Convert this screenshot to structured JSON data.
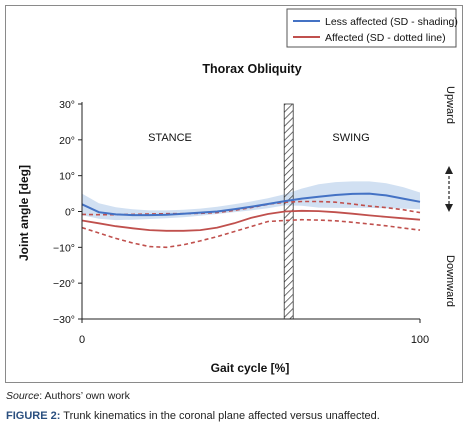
{
  "chart_data": {
    "type": "line",
    "title": "Thorax Obliquity",
    "xlabel": "Gait cycle [%]",
    "ylabel": "Joint angle [deg]",
    "xlim": [
      0,
      100
    ],
    "ylim": [
      -30,
      30
    ],
    "xticks": [
      "0",
      "100"
    ],
    "yticks": [
      "30°",
      "20°",
      "10°",
      "0°",
      "−10°",
      "−20°",
      "−30°"
    ],
    "ytick_values": [
      30,
      20,
      10,
      0,
      -10,
      -20,
      -30
    ],
    "grid": false,
    "legend_position": "top-right",
    "phase_labels": {
      "stance": "STANCE",
      "swing": "SWING"
    },
    "toe_off_x": 61,
    "direction_labels": {
      "up": "Upward",
      "down": "Downward"
    },
    "legend": [
      {
        "label": "Less affected (SD - shading)",
        "color": "#4472c4"
      },
      {
        "label": "Affected (SD - dotted line)",
        "color": "#c0504d"
      }
    ],
    "series": [
      {
        "name": "Less affected (SD - shading)",
        "color": "#4472c4",
        "x": [
          0,
          5,
          10,
          15,
          20,
          25,
          30,
          35,
          40,
          45,
          50,
          55,
          60,
          65,
          70,
          75,
          80,
          85,
          90,
          95,
          100
        ],
        "values": [
          2,
          -0.2,
          -0.8,
          -1,
          -1,
          -0.9,
          -0.6,
          -0.3,
          0,
          0.6,
          1.3,
          2.1,
          2.9,
          3.6,
          4.1,
          4.6,
          4.9,
          5,
          4.5,
          3.6,
          2.7
        ],
        "upper": [
          5,
          2.3,
          1.2,
          0.6,
          0.3,
          0.3,
          0.5,
          0.8,
          1.3,
          2,
          2.8,
          3.7,
          4.8,
          6.4,
          7.6,
          8.2,
          8.4,
          8.4,
          7.9,
          6.8,
          5.3
        ],
        "lower": [
          -1,
          -2,
          -2.4,
          -2.3,
          -2.1,
          -1.9,
          -1.6,
          -1.2,
          -0.7,
          -0.2,
          0.3,
          0.9,
          1.7,
          1.6,
          1.1,
          1,
          1,
          1,
          0.9,
          0.8,
          0.6
        ]
      },
      {
        "name": "Affected (SD - dotted line)",
        "color": "#c0504d",
        "x": [
          0,
          5,
          10,
          15,
          20,
          25,
          30,
          35,
          40,
          45,
          50,
          55,
          60,
          65,
          70,
          75,
          80,
          85,
          90,
          95,
          100
        ],
        "values": [
          -2.5,
          -3.3,
          -4.1,
          -4.7,
          -5.2,
          -5.4,
          -5.4,
          -5.2,
          -4.5,
          -3.3,
          -1.8,
          -0.7,
          0,
          0.2,
          0.1,
          -0.2,
          -0.6,
          -1.1,
          -1.5,
          -1.9,
          -2.3
        ],
        "upper": [
          -0.8,
          -0.9,
          -0.9,
          -0.8,
          -0.7,
          -0.6,
          -0.6,
          -0.5,
          -0.3,
          0.3,
          1.1,
          2,
          2.6,
          2.8,
          2.8,
          2.6,
          2.1,
          1.5,
          1.1,
          0.5,
          -0.3
        ],
        "lower": [
          -4.5,
          -6,
          -7.5,
          -8.8,
          -9.8,
          -10,
          -9.3,
          -8.2,
          -7,
          -5.6,
          -4.2,
          -2.8,
          -2.5,
          -2.3,
          -2.4,
          -2.6,
          -3,
          -3.5,
          -4,
          -4.6,
          -5.2
        ]
      }
    ]
  },
  "caption": {
    "source_label": "Source",
    "source_text": ": Authors’ own work",
    "figure_label": "FIGURE 2:",
    "figure_text": " Trunk kinematics in the coronal plane affected versus unaffected."
  }
}
